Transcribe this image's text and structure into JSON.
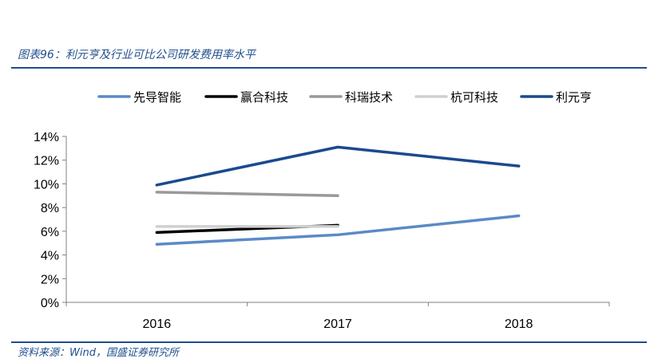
{
  "header": {
    "title": "图表96：利元亨及行业可比公司研发费用率水平"
  },
  "footer": {
    "source": "资料来源：Wind，国盛证券研究所"
  },
  "colors": {
    "rule": "#1f4e8c",
    "axis": "#808080"
  },
  "chart_data": {
    "type": "line",
    "title": "图表96：利元亨及行业可比公司研发费用率水平",
    "xlabel": "",
    "ylabel": "",
    "categories": [
      "2016",
      "2017",
      "2018"
    ],
    "ylim": [
      0,
      14
    ],
    "yticks": [
      0,
      2,
      4,
      6,
      8,
      10,
      12,
      14
    ],
    "ytick_labels": [
      "0%",
      "2%",
      "4%",
      "6%",
      "8%",
      "10%",
      "12%",
      "14%"
    ],
    "grid": false,
    "legend_position": "top",
    "series": [
      {
        "name": "先导智能",
        "color": "#5b8ac6",
        "values": [
          4.9,
          5.7,
          7.3
        ]
      },
      {
        "name": "赢合科技",
        "color": "#000000",
        "values": [
          5.9,
          6.5,
          null
        ]
      },
      {
        "name": "科瑞技术",
        "color": "#999999",
        "values": [
          9.3,
          9.0,
          null
        ]
      },
      {
        "name": "杭可科技",
        "color": "#d0d0d0",
        "values": [
          6.4,
          6.4,
          null
        ]
      },
      {
        "name": "利元亨",
        "color": "#1a4a8e",
        "values": [
          9.9,
          13.1,
          11.5
        ]
      }
    ]
  }
}
